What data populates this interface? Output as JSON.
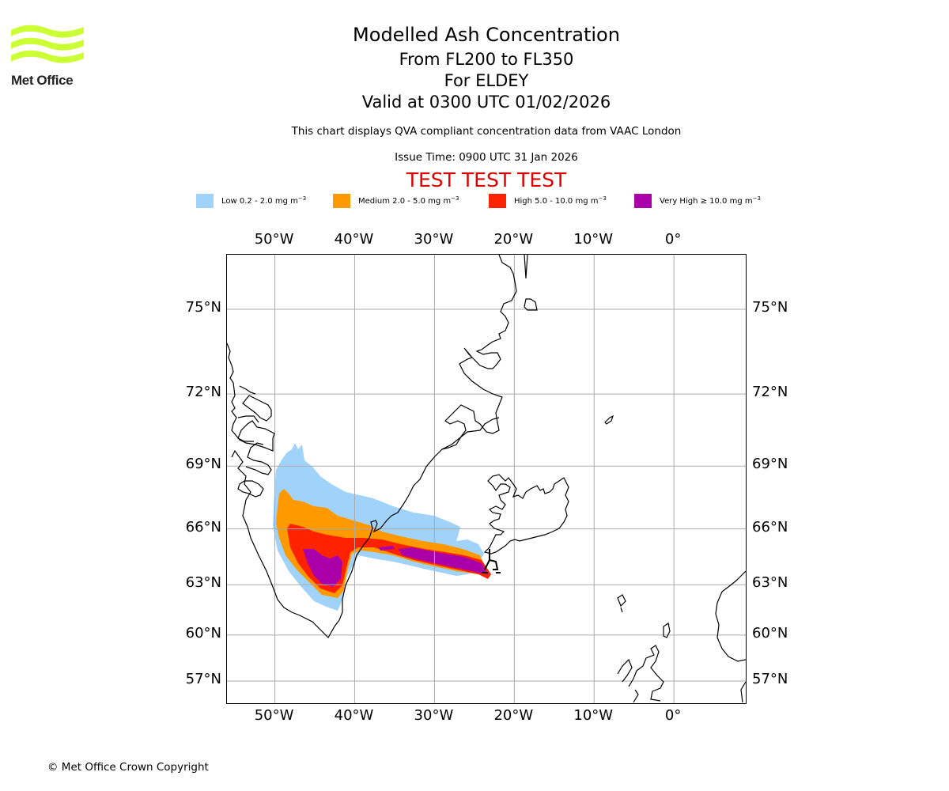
{
  "logo": {
    "text": "Met Office",
    "wave_color": "#ccff33"
  },
  "header": {
    "title": "Modelled Ash Concentration",
    "levels": "From FL200 to FL350",
    "volcano": "For ELDEY",
    "valid": "Valid at 0300 UTC 01/02/2026",
    "disclaimer": "This chart displays QVA compliant concentration data from VAAC London",
    "issue_time": "Issue Time: 0900 UTC 31 Jan 2026",
    "test_banner": "TEST TEST TEST",
    "test_color": "#dd0000"
  },
  "legend": [
    {
      "label": "Low 0.2 - 2.0 mg m",
      "exp": "−3",
      "color": "#a0d2fa"
    },
    {
      "label": "Medium 2.0 - 5.0 mg m",
      "exp": "−3",
      "color": "#ff9900"
    },
    {
      "label": "High 5.0 - 10.0 mg m",
      "exp": "−3",
      "color": "#ff2200"
    },
    {
      "label": "Very High ≥ 10.0 mg m",
      "exp": "−3",
      "color": "#aa00aa"
    }
  ],
  "map": {
    "lon_range": [
      -56,
      9
    ],
    "lat_ticks": [
      {
        "lat": 75,
        "label": "75°N"
      },
      {
        "lat": 72,
        "label": "72°N"
      },
      {
        "lat": 69,
        "label": "69°N"
      },
      {
        "lat": 66,
        "label": "66°N"
      },
      {
        "lat": 63,
        "label": "63°N"
      },
      {
        "lat": 60,
        "label": "60°N"
      },
      {
        "lat": 57,
        "label": "57°N"
      }
    ],
    "lon_ticks": [
      {
        "lon": -50,
        "label": "50°W"
      },
      {
        "lon": -40,
        "label": "40°W"
      },
      {
        "lon": -30,
        "label": "30°W"
      },
      {
        "lon": -20,
        "label": "20°W"
      },
      {
        "lon": -10,
        "label": "10°W"
      },
      {
        "lon": 0,
        "label": "0°"
      }
    ],
    "grid_color": "#aaaaaa",
    "source_volcano": {
      "name": "ELDEY",
      "lon": -23,
      "lat": 63.7
    }
  },
  "footer": {
    "copyright": "© Met Office Crown Copyright"
  }
}
